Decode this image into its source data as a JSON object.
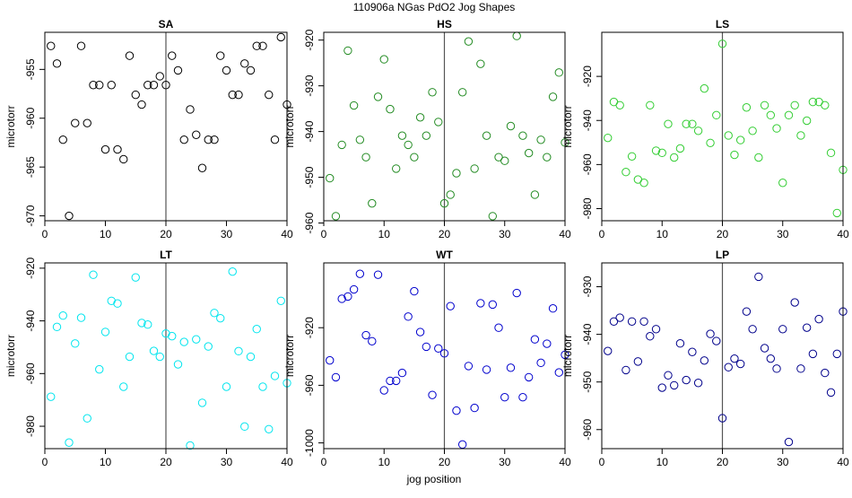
{
  "figure": {
    "title": "110906a   NGas PdO2 Jog Shapes",
    "xlabel": "jog position"
  },
  "chart_data": [
    {
      "type": "scatter",
      "title": "SA",
      "ylabel": "microtorr",
      "color": "#000000",
      "xlim": [
        0,
        40
      ],
      "ylim": [
        -970.5,
        -951.2
      ],
      "xticks": [
        0,
        10,
        20,
        30,
        40
      ],
      "yticks": [
        -955,
        -960,
        -965,
        -970
      ],
      "vline_x": 20,
      "x": [
        1,
        2,
        3,
        4,
        5,
        6,
        7,
        8,
        9,
        10,
        11,
        12,
        13,
        14,
        15,
        16,
        17,
        18,
        19,
        20,
        21,
        22,
        23,
        24,
        25,
        26,
        27,
        28,
        29,
        30,
        31,
        32,
        33,
        34,
        35,
        36,
        37,
        38,
        39,
        40
      ],
      "y": [
        -952.6,
        -954.4,
        -962.2,
        -970,
        -960.5,
        -952.6,
        -960.5,
        -956.6,
        -956.6,
        -963.2,
        -956.6,
        -963.2,
        -964.2,
        -953.6,
        -957.6,
        -958.6,
        -956.6,
        -956.6,
        -955.7,
        -956.6,
        -953.6,
        -955.1,
        -962.2,
        -959.1,
        -961.7,
        -965.1,
        -962.2,
        -962.2,
        -953.6,
        -955.1,
        -957.6,
        -957.6,
        -954.4,
        -955.1,
        -952.6,
        -952.6,
        -957.6,
        -962.2,
        -951.7,
        -958.6
      ]
    },
    {
      "type": "scatter",
      "title": "HS",
      "ylabel": "microtorr",
      "color": "#228B22",
      "xlim": [
        0,
        40
      ],
      "ylim": [
        -959.5,
        -918.3
      ],
      "xticks": [
        0,
        10,
        20,
        30,
        40
      ],
      "yticks": [
        -920,
        -930,
        -940,
        -950,
        -960
      ],
      "vline_x": 20,
      "x": [
        1,
        2,
        3,
        4,
        5,
        6,
        7,
        8,
        9,
        10,
        11,
        12,
        13,
        14,
        15,
        16,
        17,
        18,
        19,
        20,
        21,
        22,
        23,
        24,
        25,
        26,
        27,
        28,
        29,
        30,
        31,
        32,
        33,
        34,
        35,
        36,
        37,
        38,
        39,
        40
      ],
      "y": [
        -950.2,
        -958.5,
        -942.9,
        -922.3,
        -934.3,
        -941.8,
        -945.6,
        -955.7,
        -932.4,
        -924.2,
        -935.1,
        -948.1,
        -940.9,
        -942.9,
        -945.6,
        -936.9,
        -940.9,
        -931.4,
        -937.9,
        -955.7,
        -953.8,
        -949.1,
        -931.4,
        -920.3,
        -948.1,
        -925.2,
        -940.9,
        -958.5,
        -945.6,
        -946.4,
        -938.8,
        -919.1,
        -940.9,
        -944.7,
        -953.8,
        -941.8,
        -945.6,
        -932.4,
        -927.1,
        -942.4
      ]
    },
    {
      "type": "scatter",
      "title": "LS",
      "ylabel": "microtorr",
      "color": "#32CD32",
      "xlim": [
        0,
        40
      ],
      "ylim": [
        -985.5,
        -900.0
      ],
      "xticks": [
        0,
        10,
        20,
        30,
        40
      ],
      "yticks": [
        -920,
        -940,
        -960,
        -980
      ],
      "vline_x": 20,
      "x": [
        1,
        2,
        3,
        4,
        5,
        6,
        7,
        8,
        9,
        10,
        11,
        12,
        13,
        14,
        15,
        16,
        17,
        18,
        19,
        20,
        21,
        22,
        23,
        24,
        25,
        26,
        27,
        28,
        29,
        30,
        31,
        32,
        33,
        34,
        35,
        36,
        37,
        38,
        39,
        40
      ],
      "y": [
        -947.9,
        -931.6,
        -933.1,
        -963.4,
        -956.3,
        -966.8,
        -968.3,
        -933.1,
        -953.7,
        -954.7,
        -941.6,
        -956.8,
        -952.7,
        -941.6,
        -941.6,
        -944.7,
        -925.5,
        -950.2,
        -937.6,
        -905.2,
        -946.8,
        -955.6,
        -948.9,
        -934.1,
        -944.7,
        -956.8,
        -933.1,
        -937.6,
        -943.6,
        -968.3,
        -937.6,
        -933.1,
        -946.8,
        -940.1,
        -931.6,
        -931.6,
        -933.1,
        -954.7,
        -982.0,
        -962.4
      ]
    },
    {
      "type": "scatter",
      "title": "LT",
      "ylabel": "microtorr",
      "color": "#00E5EE",
      "xlim": [
        0,
        40
      ],
      "ylim": [
        -988.5,
        -918.0
      ],
      "xticks": [
        0,
        10,
        20,
        30,
        40
      ],
      "yticks": [
        -920,
        -940,
        -960,
        -980
      ],
      "vline_x": 20,
      "x": [
        1,
        2,
        3,
        4,
        5,
        6,
        7,
        8,
        9,
        10,
        11,
        12,
        13,
        14,
        15,
        16,
        17,
        18,
        19,
        20,
        21,
        22,
        23,
        24,
        25,
        26,
        27,
        28,
        29,
        30,
        31,
        32,
        33,
        34,
        35,
        36,
        37,
        38,
        39,
        40
      ],
      "y": [
        -968.8,
        -942.3,
        -938.0,
        -986.2,
        -948.6,
        -938.8,
        -977.0,
        -922.5,
        -958.4,
        -944.2,
        -932.4,
        -933.4,
        -965.0,
        -953.6,
        -923.5,
        -940.8,
        -941.4,
        -951.4,
        -953.6,
        -944.8,
        -945.8,
        -956.5,
        -948.0,
        -987.3,
        -947.0,
        -971.1,
        -949.7,
        -937.0,
        -939.0,
        -965.0,
        -921.3,
        -951.5,
        -980.1,
        -953.6,
        -943.1,
        -965.0,
        -981.1,
        -960.9,
        -932.4,
        -963.6
      ]
    },
    {
      "type": "scatter",
      "title": "WT",
      "ylabel": "microtorr",
      "color": "#0000CD",
      "xlim": [
        0,
        40
      ],
      "ylim": [
        -1004.0,
        -875.0
      ],
      "xticks": [
        0,
        10,
        20,
        30,
        40
      ],
      "yticks": [
        -920,
        -960,
        -1000
      ],
      "vline_x": 20,
      "x": [
        1,
        2,
        3,
        4,
        5,
        6,
        7,
        8,
        9,
        10,
        11,
        12,
        13,
        14,
        15,
        16,
        17,
        18,
        19,
        20,
        21,
        22,
        23,
        24,
        25,
        26,
        27,
        28,
        29,
        30,
        31,
        32,
        33,
        34,
        35,
        36,
        37,
        38,
        39,
        40
      ],
      "y": [
        -942.7,
        -954.4,
        -899.9,
        -898.3,
        -893.4,
        -882.6,
        -925.2,
        -929.4,
        -883.2,
        -963.5,
        -956.9,
        -956.9,
        -951.4,
        -912.3,
        -894.7,
        -923.0,
        -933.2,
        -966.7,
        -934.4,
        -937.8,
        -905.0,
        -977.6,
        -1001.1,
        -946.6,
        -975.7,
        -903.0,
        -949.1,
        -903.9,
        -920.0,
        -968.3,
        -947.8,
        -895.9,
        -968.3,
        -954.4,
        -928.1,
        -944.4,
        -931.1,
        -906.6,
        -951.1,
        -938.8
      ]
    },
    {
      "type": "scatter",
      "title": "LP",
      "ylabel": "microtorr",
      "color": "#00008B",
      "xlim": [
        0,
        40
      ],
      "ylim": [
        -964.0,
        -925.0
      ],
      "xticks": [
        0,
        10,
        20,
        30,
        40
      ],
      "yticks": [
        -930,
        -940,
        -950,
        -960
      ],
      "vline_x": 20,
      "x": [
        1,
        2,
        3,
        4,
        5,
        6,
        7,
        8,
        9,
        10,
        11,
        12,
        13,
        14,
        15,
        16,
        17,
        18,
        19,
        20,
        21,
        22,
        23,
        24,
        25,
        26,
        27,
        28,
        29,
        30,
        31,
        32,
        33,
        34,
        35,
        36,
        37,
        38,
        39,
        40
      ],
      "y": [
        -943.5,
        -937.3,
        -936.5,
        -947.5,
        -937.3,
        -945.7,
        -937.3,
        -940.4,
        -938.9,
        -951.2,
        -948.6,
        -950.7,
        -941.9,
        -949.6,
        -943.7,
        -950.2,
        -945.5,
        -939.9,
        -941.4,
        -957.6,
        -946.9,
        -945.1,
        -946.2,
        -935.2,
        -938.9,
        -927.9,
        -942.9,
        -945.1,
        -947.2,
        -938.9,
        -962.6,
        -933.3,
        -947.2,
        -938.6,
        -944.1,
        -936.8,
        -948.1,
        -952.2,
        -944.1,
        -935.2
      ]
    }
  ]
}
